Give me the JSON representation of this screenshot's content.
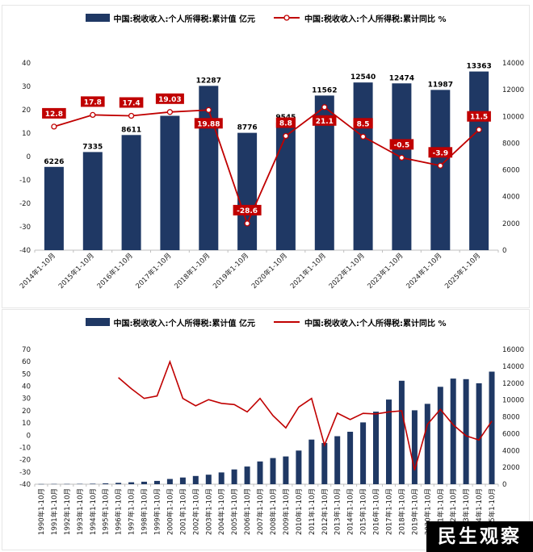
{
  "watermark": "民生观察",
  "colors": {
    "bar": "#1f3864",
    "line": "#c00000",
    "watermark_bg": "#000000",
    "watermark_text": "#ffffff"
  },
  "chart_data": [
    {
      "type": "bar",
      "combo": "bar+line",
      "legend_position": "top",
      "grid": false,
      "categories": [
        "2014年1-10月",
        "2015年1-10月",
        "2016年1-10月",
        "2017年1-10月",
        "2018年1-10月",
        "2019年1-10月",
        "2020年1-10月",
        "2021年1-10月",
        "2022年1-10月",
        "2023年1-10月",
        "2024年1-10月",
        "2025年1-10月"
      ],
      "left_axis": {
        "min": -40,
        "max": 40,
        "step": 10
      },
      "right_axis": {
        "min": 0,
        "max": 14000,
        "step": 2000
      },
      "series": [
        {
          "name": "中国:税收收入:个人所得税:累计值 亿元",
          "type": "bar",
          "axis": "right",
          "color": "#1f3864",
          "values": [
            6226,
            7335,
            8611,
            10046,
            12287,
            8776,
            9545,
            11562,
            12540,
            12474,
            11987,
            13363
          ],
          "labels": [
            "6226",
            "7335",
            "8611",
            "",
            "12287",
            "8776",
            "9545",
            "11562",
            "12540",
            "12474",
            "11987",
            "13363"
          ]
        },
        {
          "name": "中国:税收收入:个人所得税:累计同比 %",
          "type": "line",
          "axis": "left",
          "color": "#c00000",
          "values": [
            12.8,
            17.8,
            17.4,
            19.03,
            19.88,
            -28.6,
            8.8,
            21.1,
            8.5,
            -0.5,
            -3.9,
            11.5
          ],
          "labels": [
            "12.8",
            "17.8",
            "17.4",
            "19.03",
            "19.88",
            "-28.6",
            "8.8",
            "21.1",
            "8.5",
            "-0.5",
            "-3.9",
            "11.5"
          ]
        }
      ]
    },
    {
      "type": "bar",
      "combo": "bar+line",
      "legend_position": "top",
      "grid": false,
      "categories": [
        "1990年1-10月",
        "1991年1-10月",
        "1992年1-10月",
        "1993年1-10月",
        "1994年1-10月",
        "1995年1-10月",
        "1996年1-10月",
        "1997年1-10月",
        "1998年1-10月",
        "1999年1-10月",
        "2000年1-10月",
        "2001年1-10月",
        "2002年1-10月",
        "2003年1-10月",
        "2004年1-10月",
        "2005年1-10月",
        "2006年1-10月",
        "2007年1-10月",
        "2008年1-10月",
        "2009年1-10月",
        "2010年1-10月",
        "2011年1-10月",
        "2012年1-10月",
        "2013年1-10月",
        "2014年1-10月",
        "2015年1-10月",
        "2016年1-10月",
        "2017年1-10月",
        "2018年1-10月",
        "2019年1-10月",
        "2020年1-10月",
        "2021年1-10月",
        "2022年1-10月",
        "2023年1-10月",
        "2024年1-10月",
        "2025年1-10月"
      ],
      "left_axis": {
        "min": -40,
        "max": 70,
        "step": 10
      },
      "right_axis": {
        "min": 0,
        "max": 16000,
        "step": 2000
      },
      "series": [
        {
          "name": "中国:税收收入:个人所得税:累计值 亿元",
          "type": "bar",
          "axis": "right",
          "color": "#1f3864",
          "values": [
            20,
            25,
            30,
            40,
            60,
            110,
            160,
            230,
            300,
            390,
            620,
            800,
            980,
            1130,
            1400,
            1750,
            2100,
            2700,
            3100,
            3300,
            4000,
            5300,
            4900,
            5700,
            6226,
            7335,
            8611,
            10046,
            12287,
            8776,
            9545,
            11562,
            12540,
            12474,
            11987,
            13363
          ]
        },
        {
          "name": "中国:税收收入:个人所得税:累计同比 %",
          "type": "line",
          "axis": "left",
          "color": "#c00000",
          "values": [
            null,
            null,
            null,
            null,
            null,
            null,
            47,
            38,
            30,
            32,
            60,
            30,
            24,
            29,
            26,
            25,
            19,
            30,
            16,
            6,
            23,
            30,
            -8,
            18,
            12.8,
            17.8,
            17.4,
            19,
            19.9,
            -28.6,
            8.8,
            21.1,
            8.5,
            -0.5,
            -3.9,
            11.5
          ]
        }
      ]
    }
  ]
}
